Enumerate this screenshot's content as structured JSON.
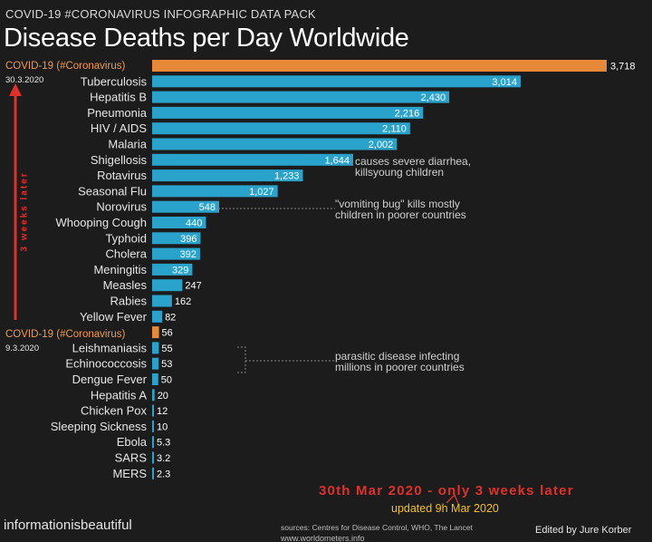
{
  "supertitle": "COVID-19 #CORONAVIRUS INFOGRAPHIC DATA PACK",
  "title": "Disease Deaths per Day Worldwide",
  "left_tags": {
    "top_tag": "COVID-19 (#Coronavirus)",
    "top_date": "30.3.2020",
    "mid_tag": "COVID-19 (#Coronavirus)",
    "mid_date": "9.3.2020",
    "weeks": "3 weeks later"
  },
  "annotations": {
    "shigellosis": [
      "causes severe diarrhea,",
      "killsyoung children"
    ],
    "norovirus": [
      "\"vomiting bug\" kills mostly",
      "children in poorer countries"
    ],
    "parasitic": [
      "parasitic disease infecting",
      "millions in poorer countries"
    ]
  },
  "update_main": "30th Mar 2020 - only 3 weeks later",
  "update_sub": "updated 9h Mar 2020",
  "brand": "informationisbeautiful",
  "sources": "sources: Centres for Disease Control, WHO, The Lancet",
  "sources2": "www.worldometers.info",
  "editor": "Edited by Jure Korber",
  "colors": {
    "bar": "#2aa3cc",
    "highlight": "#e8893a",
    "arrow": "#e0302a"
  },
  "chart_data": {
    "type": "bar",
    "orientation": "horizontal",
    "title": "Disease Deaths per Day Worldwide",
    "categories": [
      "COVID-19 (#Coronavirus)",
      "Tuberculosis",
      "Hepatitis B",
      "Pneumonia",
      "HIV / AIDS",
      "Malaria",
      "Shigellosis",
      "Rotavirus",
      "Seasonal Flu",
      "Norovirus",
      "Whooping Cough",
      "Typhoid",
      "Cholera",
      "Meningitis",
      "Measles",
      "Rabies",
      "Yellow Fever",
      "COVID-19 (#Coronavirus)",
      "Leishmaniasis",
      "Echinococcosis",
      "Dengue Fever",
      "Hepatitis A",
      "Chicken Pox",
      "Sleeping Sickness",
      "Ebola",
      "SARS",
      "MERS"
    ],
    "values": [
      3718,
      3014,
      2430,
      2216,
      2110,
      2002,
      1644,
      1233,
      1027,
      548,
      440,
      396,
      392,
      329,
      247,
      162,
      82,
      56,
      55,
      53,
      50,
      20,
      12,
      10,
      5.3,
      3.2,
      2.3
    ],
    "value_labels": [
      "3,718",
      "3,014",
      "2,430",
      "2,216",
      "2,110",
      "2,002",
      "1,644",
      "1,233",
      "1,027",
      "548",
      "440",
      "396",
      "392",
      "329",
      "247",
      "162",
      "82",
      "56",
      "55",
      "53",
      "50",
      "20",
      "12",
      "10",
      "5.3",
      "3.2",
      "2.3"
    ],
    "highlighted": [
      0,
      17
    ],
    "xlim": [
      0,
      3718
    ]
  }
}
